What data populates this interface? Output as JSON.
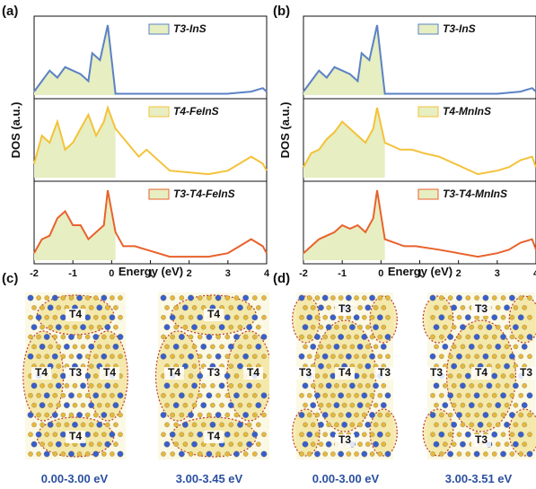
{
  "panels": {
    "a": "(a)",
    "b": "(b)",
    "c": "(c)",
    "d": "(d)"
  },
  "dos_plot": {
    "ylabel": "DOS (a.u.)",
    "xlabel": "Energy (eV)",
    "xticks": [
      "-2",
      "-1",
      "0",
      "1",
      "2",
      "3",
      "4"
    ]
  },
  "legends": {
    "a": [
      "T3-InS",
      "T4-FeInS",
      "T3-T4-FeInS"
    ],
    "b": [
      "T3-InS",
      "T4-MnInS",
      "T3-T4-MnInS"
    ]
  },
  "colors": {
    "blue": "#5b82c4",
    "yellow": "#f4c23a",
    "orange": "#e8622c",
    "fill": "#e6eec2"
  },
  "regions": {
    "c1": [
      "T4",
      "T4",
      "T3",
      "T4",
      "T4"
    ],
    "c2": [
      "T4",
      "T4",
      "T3",
      "T4",
      "T4"
    ],
    "d1": [
      "T3",
      "T3",
      "T4",
      "T3",
      "T3"
    ],
    "d2": [
      "T3",
      "T3",
      "T4",
      "T3",
      "T3"
    ]
  },
  "captions": [
    "0.00-3.00 eV",
    "3.00-3.45 eV",
    "0.00-3.00 eV",
    "3.00-3.51 eV"
  ],
  "chart_data": [
    {
      "type": "line",
      "title": "",
      "xlabel": "Energy (eV)",
      "ylabel": "DOS (a.u.)",
      "xlim": [
        -2,
        4
      ],
      "series": [
        {
          "name": "T3-InS",
          "x": [
            -2,
            -1.8,
            -1.6,
            -1.4,
            -1.2,
            -1,
            -0.8,
            -0.6,
            -0.5,
            -0.3,
            -0.1,
            0.1,
            1,
            2,
            3,
            3.6,
            3.9,
            4
          ],
          "values": [
            0.05,
            0.2,
            0.35,
            0.25,
            0.4,
            0.35,
            0.3,
            0.2,
            0.6,
            0.5,
            1.0,
            0.02,
            0.02,
            0.02,
            0.02,
            0.05,
            0.1,
            0.05
          ]
        },
        {
          "name": "T4-FeInS",
          "x": [
            -2,
            -1.8,
            -1.6,
            -1.4,
            -1.2,
            -1,
            -0.8,
            -0.6,
            -0.4,
            -0.2,
            -0.1,
            0.1,
            0.4,
            0.7,
            0.9,
            1.5,
            2.5,
            3,
            3.3,
            3.6,
            3.9,
            4
          ],
          "values": [
            0.2,
            0.6,
            0.5,
            0.8,
            0.4,
            0.5,
            0.7,
            0.9,
            0.6,
            0.8,
            1.0,
            0.7,
            0.5,
            0.3,
            0.4,
            0.1,
            0.05,
            0.1,
            0.2,
            0.3,
            0.2,
            0.1
          ]
        },
        {
          "name": "T3-T4-FeInS",
          "x": [
            -2,
            -1.8,
            -1.6,
            -1.4,
            -1.2,
            -1,
            -0.8,
            -0.6,
            -0.4,
            -0.2,
            -0.1,
            0.1,
            0.3,
            0.6,
            0.9,
            1.5,
            2.5,
            3,
            3.3,
            3.6,
            3.9,
            4
          ],
          "values": [
            0.1,
            0.3,
            0.35,
            0.6,
            0.7,
            0.5,
            0.5,
            0.3,
            0.4,
            0.5,
            1.0,
            0.4,
            0.2,
            0.2,
            0.15,
            0.05,
            0.05,
            0.1,
            0.2,
            0.3,
            0.2,
            0.1
          ]
        }
      ]
    },
    {
      "type": "line",
      "title": "",
      "xlabel": "Energy (eV)",
      "ylabel": "DOS (a.u.)",
      "xlim": [
        -2,
        4
      ],
      "series": [
        {
          "name": "T3-InS",
          "x": [
            -2,
            -1.8,
            -1.6,
            -1.4,
            -1.2,
            -1,
            -0.8,
            -0.6,
            -0.5,
            -0.3,
            -0.1,
            0.1,
            1,
            2,
            3,
            3.6,
            3.9,
            4
          ],
          "values": [
            0.05,
            0.2,
            0.35,
            0.25,
            0.4,
            0.35,
            0.3,
            0.2,
            0.6,
            0.5,
            1.0,
            0.02,
            0.02,
            0.02,
            0.02,
            0.05,
            0.1,
            0.05
          ]
        },
        {
          "name": "T4-MnInS",
          "x": [
            -2,
            -1.8,
            -1.6,
            -1.4,
            -1.2,
            -1,
            -0.8,
            -0.6,
            -0.4,
            -0.2,
            -0.1,
            0.1,
            0.5,
            0.8,
            1.1,
            1.5,
            2.5,
            3,
            3.3,
            3.6,
            3.9,
            4
          ],
          "values": [
            0.15,
            0.35,
            0.4,
            0.55,
            0.65,
            0.8,
            0.7,
            0.6,
            0.5,
            0.7,
            1.0,
            0.5,
            0.4,
            0.4,
            0.35,
            0.3,
            0.05,
            0.1,
            0.15,
            0.25,
            0.3,
            0.15
          ]
        },
        {
          "name": "T3-T4-MnInS",
          "x": [
            -2,
            -1.8,
            -1.6,
            -1.4,
            -1.2,
            -1,
            -0.8,
            -0.6,
            -0.4,
            -0.2,
            -0.1,
            0.1,
            0.6,
            0.9,
            1.5,
            2.5,
            3,
            3.3,
            3.6,
            3.9,
            4
          ],
          "values": [
            0.1,
            0.2,
            0.3,
            0.35,
            0.4,
            0.5,
            0.45,
            0.5,
            0.4,
            0.6,
            1.0,
            0.3,
            0.2,
            0.2,
            0.15,
            0.05,
            0.1,
            0.15,
            0.25,
            0.3,
            0.15
          ]
        }
      ]
    }
  ]
}
